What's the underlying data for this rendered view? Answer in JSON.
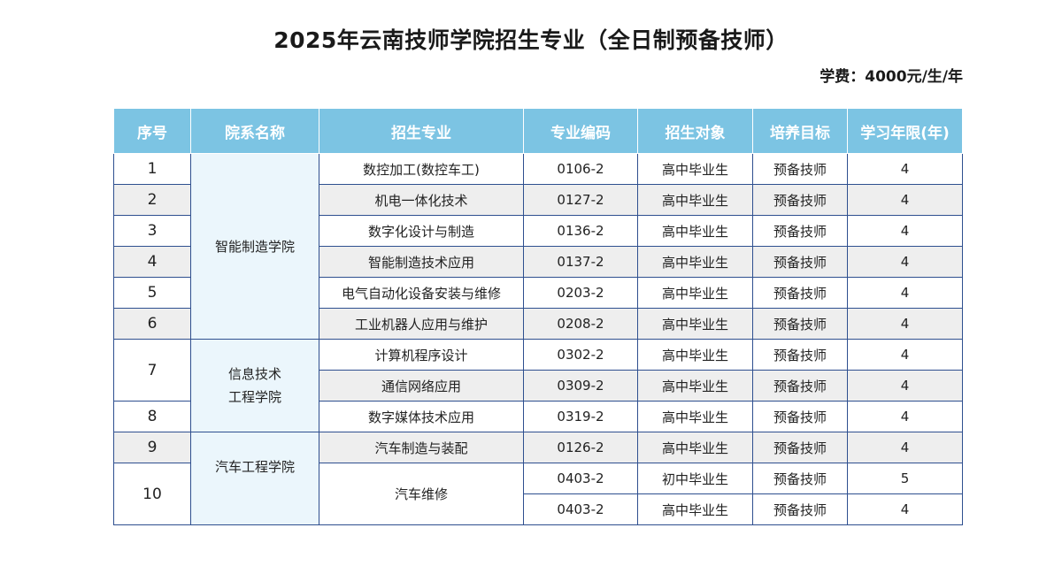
{
  "title": "2025年云南技师学院招生专业（全日制预备技师）",
  "fee": "学费：4000元/生/年",
  "table": {
    "headers": [
      "序号",
      "院系名称",
      "招生专业",
      "专业编码",
      "招生对象",
      "培养目标",
      "学习年限(年)"
    ],
    "rows": [
      {
        "no": "1",
        "college": [
          "智能制造学院"
        ],
        "major": "数控加工(数控车工)",
        "code": "0106-2",
        "target": "高中毕业生",
        "goal": "预备技师",
        "years": "4"
      },
      {
        "no": "2",
        "major": "机电一体化技术",
        "code": "0127-2",
        "target": "高中毕业生",
        "goal": "预备技师",
        "years": "4"
      },
      {
        "no": "3",
        "major": "数字化设计与制造",
        "code": "0136-2",
        "target": "高中毕业生",
        "goal": "预备技师",
        "years": "4"
      },
      {
        "no": "4",
        "major": "智能制造技术应用",
        "code": "0137-2",
        "target": "高中毕业生",
        "goal": "预备技师",
        "years": "4"
      },
      {
        "no": "5",
        "major": "电气自动化设备安装与维修",
        "code": "0203-2",
        "target": "高中毕业生",
        "goal": "预备技师",
        "years": "4"
      },
      {
        "no": "6",
        "major": "工业机器人应用与维护",
        "code": "0208-2",
        "target": "高中毕业生",
        "goal": "预备技师",
        "years": "4"
      },
      {
        "no": "7",
        "college": [
          "信息技术",
          "工程学院"
        ],
        "major": "计算机程序设计",
        "code": "0302-2",
        "target": "高中毕业生",
        "goal": "预备技师",
        "years": "4"
      },
      {
        "major": "通信网络应用",
        "code": "0309-2",
        "target": "高中毕业生",
        "goal": "预备技师",
        "years": "4"
      },
      {
        "no": "8",
        "major": "数字媒体技术应用",
        "code": "0319-2",
        "target": "高中毕业生",
        "goal": "预备技师",
        "years": "4"
      },
      {
        "no": "9",
        "college": [
          "汽车工程学院"
        ],
        "major": "汽车制造与装配",
        "code": "0126-2",
        "target": "高中毕业生",
        "goal": "预备技师",
        "years": "4"
      },
      {
        "no": "10",
        "major": "汽车维修",
        "code": "0403-2",
        "target": "初中毕业生",
        "goal": "预备技师",
        "years": "5"
      },
      {
        "code": "0403-2",
        "target": "高中毕业生",
        "goal": "预备技师",
        "years": "4"
      }
    ]
  }
}
